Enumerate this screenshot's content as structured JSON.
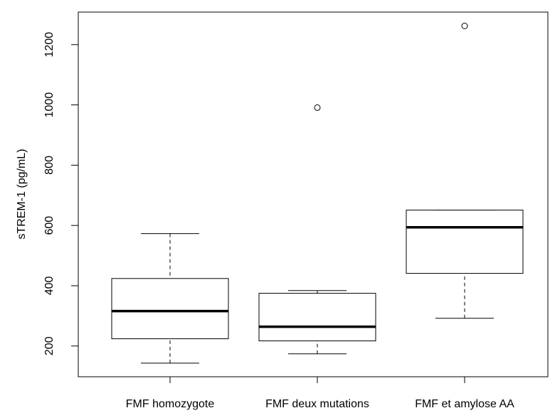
{
  "chart_data": {
    "type": "box",
    "ylabel": "sTREM-1 (pg/mL)",
    "categories": [
      "FMF homozygote",
      "FMF deux mutations",
      "FMF et amylose AA"
    ],
    "boxes": [
      {
        "low": 143,
        "q1": 224,
        "median": 316,
        "q3": 424,
        "high": 573,
        "outliers": []
      },
      {
        "low": 174,
        "q1": 217,
        "median": 264,
        "q3": 375,
        "high": 384,
        "outliers": [
          991
        ]
      },
      {
        "low": 292,
        "q1": 441,
        "median": 594,
        "q3": 651,
        "high": 651,
        "outliers": [
          1262
        ]
      }
    ],
    "color": "#000000",
    "ylim": [
      98,
      1308
    ],
    "yticks": [
      200,
      400,
      600,
      800,
      1000,
      1200
    ]
  }
}
